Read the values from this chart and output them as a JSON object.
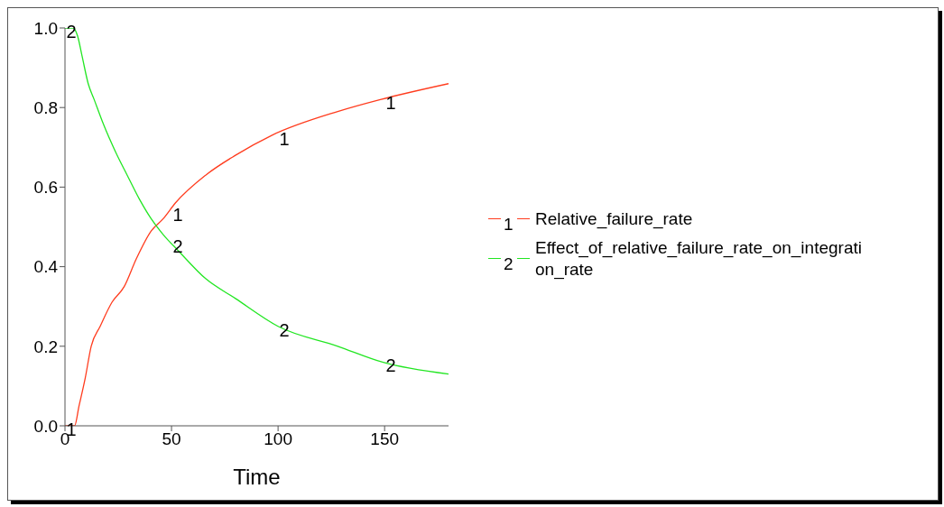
{
  "chart_data": {
    "type": "line",
    "xlabel": "Time",
    "xlim": [
      0,
      180
    ],
    "xticks": [
      0,
      50,
      100,
      150
    ],
    "ylim": [
      0,
      1
    ],
    "yticks": [
      {
        "value": 0,
        "label": "0.0"
      },
      {
        "value": 0.2,
        "label": "0.2"
      },
      {
        "value": 0.4,
        "label": "0.4"
      },
      {
        "value": 0.6,
        "label": "0.6"
      },
      {
        "value": 0.8,
        "label": "0.8"
      },
      {
        "value": 1,
        "label": "1.0"
      }
    ],
    "grid": false,
    "legend": "right",
    "marker": "none",
    "line_style": "solid",
    "series": [
      {
        "name": "Relative_failure_rate",
        "color": "#ff3c1e",
        "x": [
          0,
          4.5,
          6.6,
          9.5,
          12.3,
          16.5,
          22,
          27.8,
          33.5,
          40.5,
          46,
          51.8,
          66,
          80,
          97,
          128,
          148,
          180
        ],
        "values": [
          0,
          0,
          0.05,
          0.12,
          0.2,
          0.25,
          0.31,
          0.35,
          0.42,
          0.49,
          0.52,
          0.56,
          0.63,
          0.68,
          0.73,
          0.79,
          0.82,
          0.86
        ]
      },
      {
        "name": "Effect_of_relative_failure_rate_on_integration_rate",
        "color": "#22e622",
        "x": [
          0,
          3.8,
          5.9,
          8,
          10.9,
          13.7,
          17.9,
          23.6,
          29.2,
          34.9,
          40.5,
          46.2,
          53.2,
          66,
          80,
          100,
          128,
          149,
          180
        ],
        "values": [
          1,
          1,
          0.98,
          0.93,
          0.86,
          0.82,
          0.76,
          0.69,
          0.63,
          0.57,
          0.52,
          0.48,
          0.44,
          0.37,
          0.32,
          0.25,
          0.2,
          0.16,
          0.13
        ]
      }
    ],
    "annotations": [
      {
        "text": "1",
        "x": 0,
        "y": 0
      },
      {
        "text": "1",
        "x": 50,
        "y": 0.54
      },
      {
        "text": "1",
        "x": 100,
        "y": 0.73
      },
      {
        "text": "1",
        "x": 150,
        "y": 0.82
      },
      {
        "text": "2",
        "x": 0,
        "y": 1
      },
      {
        "text": "2",
        "x": 50,
        "y": 0.46
      },
      {
        "text": "2",
        "x": 100,
        "y": 0.25
      },
      {
        "text": "2",
        "x": 150,
        "y": 0.16
      }
    ]
  }
}
